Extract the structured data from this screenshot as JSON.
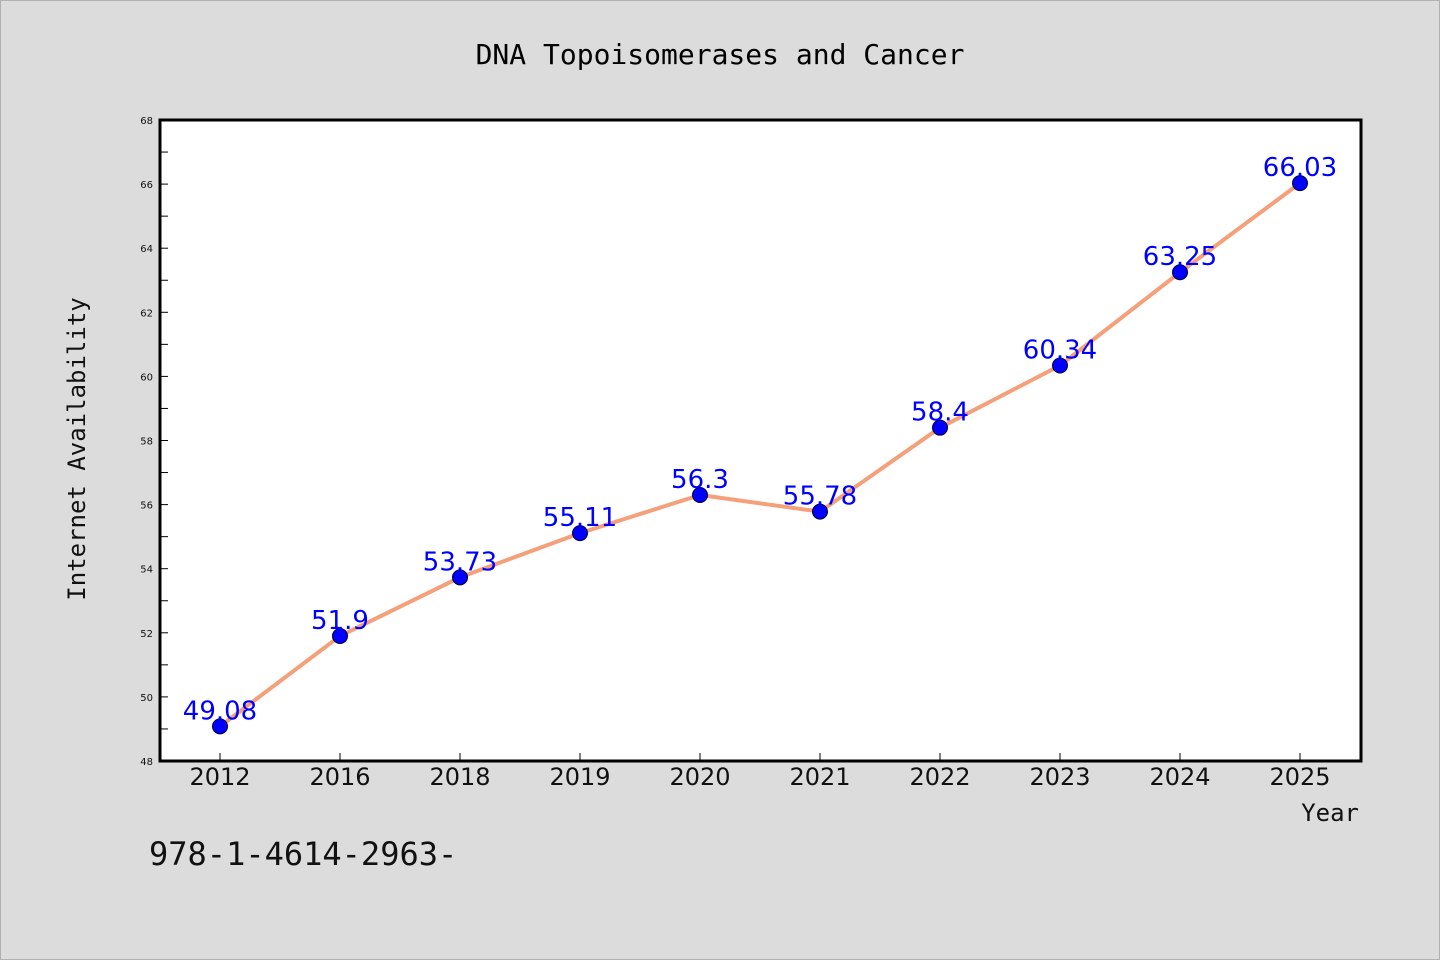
{
  "chart_data": {
    "type": "line",
    "title": "DNA Topoisomerases and Cancer",
    "xlabel": "Year",
    "ylabel": "Internet Availability",
    "categories": [
      "2012",
      "2016",
      "2018",
      "2019",
      "2020",
      "2021",
      "2022",
      "2023",
      "2024",
      "2025"
    ],
    "series": [
      {
        "values": [
          49.08,
          51.9,
          53.73,
          55.11,
          56.3,
          55.78,
          58.4,
          60.34,
          63.25,
          66.03
        ],
        "data_labels": [
          "49.08",
          "51.9",
          "53.73",
          "55.11",
          "56.3",
          "55.78",
          "58.4",
          "60.34",
          "63.25",
          "66.03"
        ]
      }
    ],
    "ylim": [
      48,
      68
    ],
    "yticks": [
      "48",
      "50",
      "52",
      "54",
      "56",
      "58",
      "60",
      "62",
      "64",
      "66",
      "68"
    ],
    "grid": false,
    "legend": "none",
    "colors": {
      "line": "#f4a07a",
      "marker": "#0000ff",
      "data_label": "#0000ff",
      "background": "#dcdcdc",
      "plot_background": "#ffffff"
    }
  },
  "footnote": "978-1-4614-2963-"
}
